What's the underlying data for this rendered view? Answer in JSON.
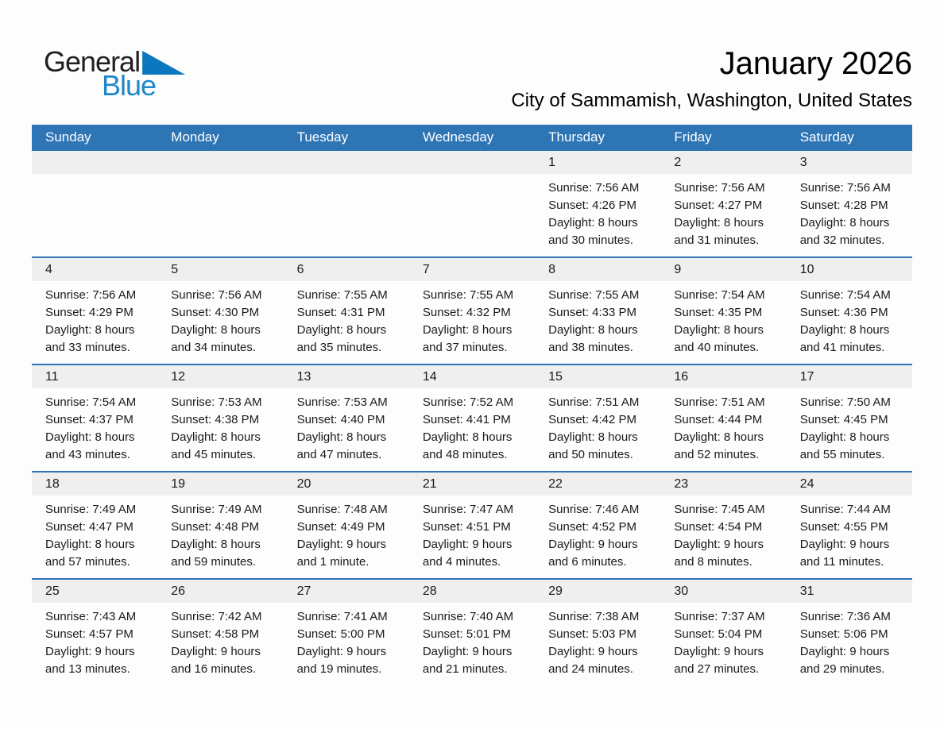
{
  "logo": {
    "general": "General",
    "blue": "Blue",
    "triangle_icon": "blue-pennant-triangle"
  },
  "header": {
    "title": "January 2026",
    "subtitle": "City of Sammamish, Washington, United States"
  },
  "colors": {
    "header_bar_blue": "#2e75b6",
    "week_divider_blue": "#2e75b6",
    "day_band_gray": "#efefef",
    "logo_blue": "#1e87c7",
    "logo_triangle_blue": "#0c77be",
    "text": "#1a1a1a",
    "dow_text": "#ffffff"
  },
  "calendar": {
    "day_headers": [
      "Sunday",
      "Monday",
      "Tuesday",
      "Wednesday",
      "Thursday",
      "Friday",
      "Saturday"
    ],
    "weeks": [
      {
        "days": [
          {
            "day": "",
            "sunrise": "",
            "sunset": "",
            "daylight1": "",
            "daylight2": ""
          },
          {
            "day": "",
            "sunrise": "",
            "sunset": "",
            "daylight1": "",
            "daylight2": ""
          },
          {
            "day": "",
            "sunrise": "",
            "sunset": "",
            "daylight1": "",
            "daylight2": ""
          },
          {
            "day": "",
            "sunrise": "",
            "sunset": "",
            "daylight1": "",
            "daylight2": ""
          },
          {
            "day": "1",
            "sunrise": "Sunrise: 7:56 AM",
            "sunset": "Sunset: 4:26 PM",
            "daylight1": "Daylight: 8 hours",
            "daylight2": "and 30 minutes."
          },
          {
            "day": "2",
            "sunrise": "Sunrise: 7:56 AM",
            "sunset": "Sunset: 4:27 PM",
            "daylight1": "Daylight: 8 hours",
            "daylight2": "and 31 minutes."
          },
          {
            "day": "3",
            "sunrise": "Sunrise: 7:56 AM",
            "sunset": "Sunset: 4:28 PM",
            "daylight1": "Daylight: 8 hours",
            "daylight2": "and 32 minutes."
          }
        ]
      },
      {
        "days": [
          {
            "day": "4",
            "sunrise": "Sunrise: 7:56 AM",
            "sunset": "Sunset: 4:29 PM",
            "daylight1": "Daylight: 8 hours",
            "daylight2": "and 33 minutes."
          },
          {
            "day": "5",
            "sunrise": "Sunrise: 7:56 AM",
            "sunset": "Sunset: 4:30 PM",
            "daylight1": "Daylight: 8 hours",
            "daylight2": "and 34 minutes."
          },
          {
            "day": "6",
            "sunrise": "Sunrise: 7:55 AM",
            "sunset": "Sunset: 4:31 PM",
            "daylight1": "Daylight: 8 hours",
            "daylight2": "and 35 minutes."
          },
          {
            "day": "7",
            "sunrise": "Sunrise: 7:55 AM",
            "sunset": "Sunset: 4:32 PM",
            "daylight1": "Daylight: 8 hours",
            "daylight2": "and 37 minutes."
          },
          {
            "day": "8",
            "sunrise": "Sunrise: 7:55 AM",
            "sunset": "Sunset: 4:33 PM",
            "daylight1": "Daylight: 8 hours",
            "daylight2": "and 38 minutes."
          },
          {
            "day": "9",
            "sunrise": "Sunrise: 7:54 AM",
            "sunset": "Sunset: 4:35 PM",
            "daylight1": "Daylight: 8 hours",
            "daylight2": "and 40 minutes."
          },
          {
            "day": "10",
            "sunrise": "Sunrise: 7:54 AM",
            "sunset": "Sunset: 4:36 PM",
            "daylight1": "Daylight: 8 hours",
            "daylight2": "and 41 minutes."
          }
        ]
      },
      {
        "days": [
          {
            "day": "11",
            "sunrise": "Sunrise: 7:54 AM",
            "sunset": "Sunset: 4:37 PM",
            "daylight1": "Daylight: 8 hours",
            "daylight2": "and 43 minutes."
          },
          {
            "day": "12",
            "sunrise": "Sunrise: 7:53 AM",
            "sunset": "Sunset: 4:38 PM",
            "daylight1": "Daylight: 8 hours",
            "daylight2": "and 45 minutes."
          },
          {
            "day": "13",
            "sunrise": "Sunrise: 7:53 AM",
            "sunset": "Sunset: 4:40 PM",
            "daylight1": "Daylight: 8 hours",
            "daylight2": "and 47 minutes."
          },
          {
            "day": "14",
            "sunrise": "Sunrise: 7:52 AM",
            "sunset": "Sunset: 4:41 PM",
            "daylight1": "Daylight: 8 hours",
            "daylight2": "and 48 minutes."
          },
          {
            "day": "15",
            "sunrise": "Sunrise: 7:51 AM",
            "sunset": "Sunset: 4:42 PM",
            "daylight1": "Daylight: 8 hours",
            "daylight2": "and 50 minutes."
          },
          {
            "day": "16",
            "sunrise": "Sunrise: 7:51 AM",
            "sunset": "Sunset: 4:44 PM",
            "daylight1": "Daylight: 8 hours",
            "daylight2": "and 52 minutes."
          },
          {
            "day": "17",
            "sunrise": "Sunrise: 7:50 AM",
            "sunset": "Sunset: 4:45 PM",
            "daylight1": "Daylight: 8 hours",
            "daylight2": "and 55 minutes."
          }
        ]
      },
      {
        "days": [
          {
            "day": "18",
            "sunrise": "Sunrise: 7:49 AM",
            "sunset": "Sunset: 4:47 PM",
            "daylight1": "Daylight: 8 hours",
            "daylight2": "and 57 minutes."
          },
          {
            "day": "19",
            "sunrise": "Sunrise: 7:49 AM",
            "sunset": "Sunset: 4:48 PM",
            "daylight1": "Daylight: 8 hours",
            "daylight2": "and 59 minutes."
          },
          {
            "day": "20",
            "sunrise": "Sunrise: 7:48 AM",
            "sunset": "Sunset: 4:49 PM",
            "daylight1": "Daylight: 9 hours",
            "daylight2": "and 1 minute."
          },
          {
            "day": "21",
            "sunrise": "Sunrise: 7:47 AM",
            "sunset": "Sunset: 4:51 PM",
            "daylight1": "Daylight: 9 hours",
            "daylight2": "and 4 minutes."
          },
          {
            "day": "22",
            "sunrise": "Sunrise: 7:46 AM",
            "sunset": "Sunset: 4:52 PM",
            "daylight1": "Daylight: 9 hours",
            "daylight2": "and 6 minutes."
          },
          {
            "day": "23",
            "sunrise": "Sunrise: 7:45 AM",
            "sunset": "Sunset: 4:54 PM",
            "daylight1": "Daylight: 9 hours",
            "daylight2": "and 8 minutes."
          },
          {
            "day": "24",
            "sunrise": "Sunrise: 7:44 AM",
            "sunset": "Sunset: 4:55 PM",
            "daylight1": "Daylight: 9 hours",
            "daylight2": "and 11 minutes."
          }
        ]
      },
      {
        "days": [
          {
            "day": "25",
            "sunrise": "Sunrise: 7:43 AM",
            "sunset": "Sunset: 4:57 PM",
            "daylight1": "Daylight: 9 hours",
            "daylight2": "and 13 minutes."
          },
          {
            "day": "26",
            "sunrise": "Sunrise: 7:42 AM",
            "sunset": "Sunset: 4:58 PM",
            "daylight1": "Daylight: 9 hours",
            "daylight2": "and 16 minutes."
          },
          {
            "day": "27",
            "sunrise": "Sunrise: 7:41 AM",
            "sunset": "Sunset: 5:00 PM",
            "daylight1": "Daylight: 9 hours",
            "daylight2": "and 19 minutes."
          },
          {
            "day": "28",
            "sunrise": "Sunrise: 7:40 AM",
            "sunset": "Sunset: 5:01 PM",
            "daylight1": "Daylight: 9 hours",
            "daylight2": "and 21 minutes."
          },
          {
            "day": "29",
            "sunrise": "Sunrise: 7:38 AM",
            "sunset": "Sunset: 5:03 PM",
            "daylight1": "Daylight: 9 hours",
            "daylight2": "and 24 minutes."
          },
          {
            "day": "30",
            "sunrise": "Sunrise: 7:37 AM",
            "sunset": "Sunset: 5:04 PM",
            "daylight1": "Daylight: 9 hours",
            "daylight2": "and 27 minutes."
          },
          {
            "day": "31",
            "sunrise": "Sunrise: 7:36 AM",
            "sunset": "Sunset: 5:06 PM",
            "daylight1": "Daylight: 9 hours",
            "daylight2": "and 29 minutes."
          }
        ]
      }
    ]
  }
}
